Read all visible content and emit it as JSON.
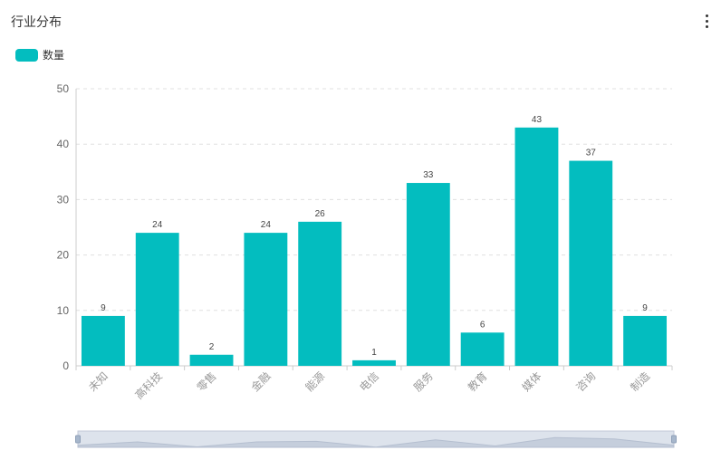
{
  "panel": {
    "title": "行业分布"
  },
  "colors": {
    "bar": "#03BDBF",
    "grid": "#e0e0e0",
    "axis": "#cccccc",
    "tick_text": "#666666",
    "label_text": "#444444",
    "zoom_bg": "#dde3ec"
  },
  "icons": {
    "more": "more-vertical-icon"
  },
  "chart_data": {
    "type": "bar",
    "categories": [
      "未知",
      "高科技",
      "零售",
      "金融",
      "能源",
      "电信",
      "服务",
      "教育",
      "媒体",
      "咨询",
      "制造"
    ],
    "series": [
      {
        "name": "数量",
        "values": [
          9,
          24,
          2,
          24,
          26,
          1,
          33,
          6,
          43,
          37,
          9
        ]
      }
    ],
    "ylim": [
      0,
      50
    ],
    "yticks": [
      "0",
      "10",
      "20",
      "30",
      "40",
      "50"
    ],
    "grid": true,
    "legend": "top-left",
    "data_labels": true,
    "data_zoom": {
      "start_percent": 0,
      "end_percent": 100
    }
  }
}
